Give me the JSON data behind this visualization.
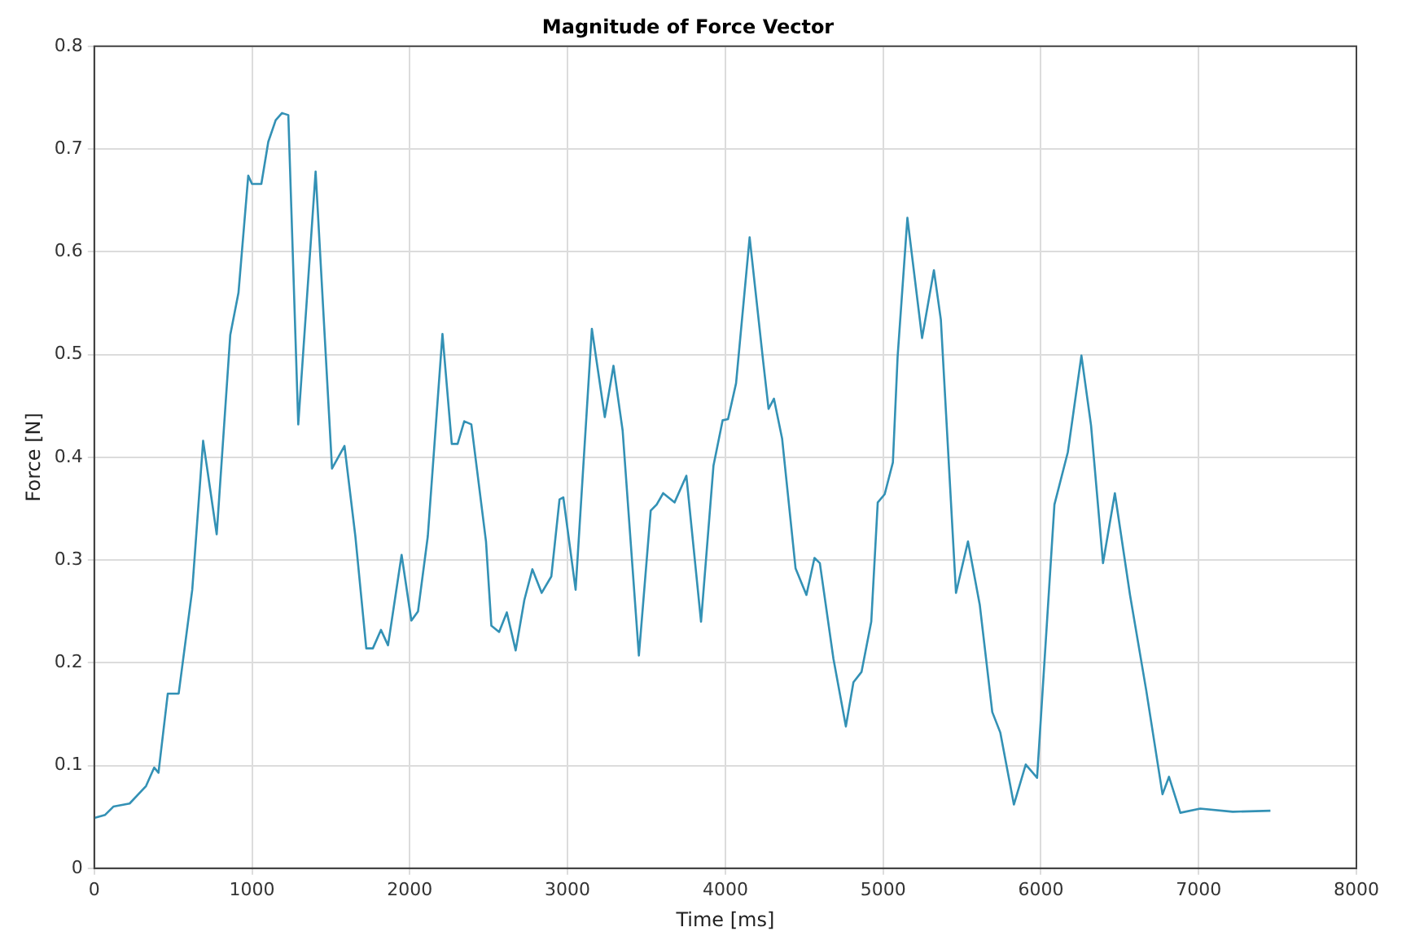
{
  "chart_data": {
    "type": "line",
    "title": "Magnitude of Force Vector",
    "xlabel": "Time [ms]",
    "ylabel": "Force [N]",
    "xlim": [
      0,
      8000
    ],
    "xticks": [
      0,
      1000,
      2000,
      3000,
      4000,
      5000,
      6000,
      7000,
      8000
    ],
    "ylim": [
      0,
      0.8
    ],
    "yticks": [
      0,
      0.1,
      0.2,
      0.3,
      0.4,
      0.5,
      0.6,
      0.7,
      0.8
    ],
    "grid": true,
    "marker": "none",
    "line_style": "solid",
    "series": [
      {
        "color": "#3391b5",
        "x": [
          0,
          69,
          121,
          224,
          328,
          380,
          407,
          466,
          535,
          621,
          690,
          776,
          862,
          914,
          976,
          1000,
          1059,
          1103,
          1150,
          1190,
          1230,
          1293,
          1403,
          1507,
          1586,
          1655,
          1724,
          1766,
          1817,
          1862,
          1948,
          2010,
          2052,
          2114,
          2207,
          2266,
          2303,
          2345,
          2390,
          2483,
          2517,
          2566,
          2615,
          2671,
          2726,
          2777,
          2836,
          2897,
          2949,
          2973,
          3051,
          3154,
          3236,
          3291,
          3349,
          3452,
          3527,
          3565,
          3606,
          3678,
          3753,
          3846,
          3925,
          3983,
          4017,
          4068,
          4154,
          4240,
          4274,
          4308,
          4360,
          4445,
          4514,
          4565,
          4599,
          4685,
          4764,
          4812,
          4863,
          4925,
          4966,
          5010,
          5062,
          5092,
          5154,
          5247,
          5322,
          5366,
          5462,
          5538,
          5613,
          5692,
          5743,
          5829,
          5904,
          5976,
          6086,
          6171,
          6257,
          6318,
          6394,
          6469,
          6565,
          6668,
          6771,
          6812,
          6884,
          7010,
          7216,
          7455
        ],
        "values": [
          0.049,
          0.052,
          0.06,
          0.063,
          0.08,
          0.098,
          0.093,
          0.17,
          0.17,
          0.271,
          0.416,
          0.325,
          0.519,
          0.56,
          0.674,
          0.666,
          0.666,
          0.707,
          0.728,
          0.735,
          0.733,
          0.432,
          0.678,
          0.389,
          0.411,
          0.323,
          0.214,
          0.214,
          0.232,
          0.217,
          0.305,
          0.241,
          0.25,
          0.323,
          0.52,
          0.413,
          0.413,
          0.435,
          0.432,
          0.318,
          0.236,
          0.23,
          0.249,
          0.212,
          0.261,
          0.291,
          0.268,
          0.284,
          0.359,
          0.361,
          0.271,
          0.525,
          0.439,
          0.489,
          0.426,
          0.207,
          0.348,
          0.354,
          0.365,
          0.356,
          0.382,
          0.24,
          0.392,
          0.436,
          0.437,
          0.472,
          0.614,
          0.493,
          0.447,
          0.457,
          0.418,
          0.292,
          0.266,
          0.302,
          0.297,
          0.204,
          0.138,
          0.181,
          0.191,
          0.24,
          0.356,
          0.364,
          0.395,
          0.498,
          0.633,
          0.516,
          0.582,
          0.534,
          0.268,
          0.318,
          0.256,
          0.152,
          0.132,
          0.062,
          0.101,
          0.088,
          0.354,
          0.405,
          0.499,
          0.431,
          0.297,
          0.365,
          0.266,
          0.173,
          0.072,
          0.089,
          0.054,
          0.058,
          0.055,
          0.056
        ]
      }
    ]
  }
}
